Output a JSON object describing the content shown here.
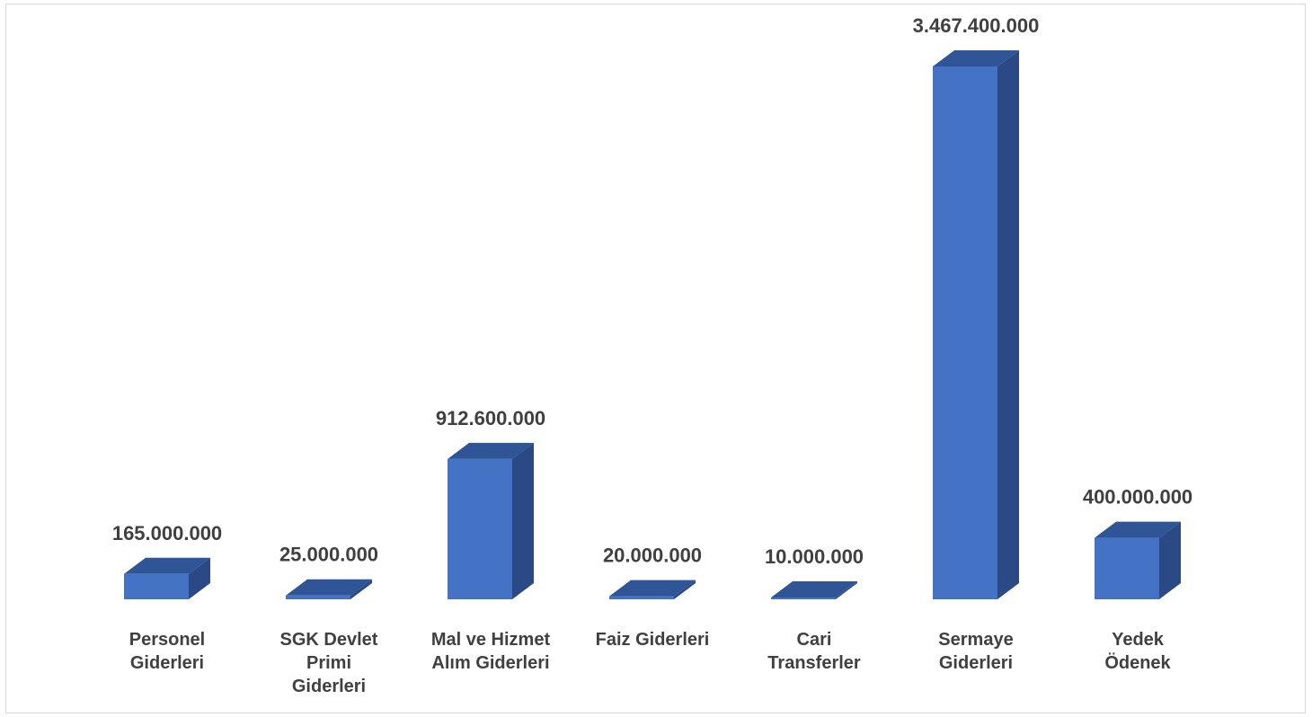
{
  "chart_data": {
    "type": "bar",
    "style": "3d-column",
    "categories": [
      [
        "Personel",
        "Giderleri"
      ],
      [
        "SGK Devlet",
        "Primi",
        "Giderleri"
      ],
      [
        "Mal ve Hizmet",
        "Alım Giderleri"
      ],
      [
        "Faiz Giderleri"
      ],
      [
        "Cari",
        "Transferler"
      ],
      [
        "Sermaye",
        "Giderleri"
      ],
      [
        "Yedek",
        "Ödenek"
      ]
    ],
    "values": [
      165000000,
      25000000,
      912600000,
      20000000,
      10000000,
      3467400000,
      400000000
    ],
    "value_labels": [
      "165.000.000",
      "25.000.000",
      "912.600.000",
      "20.000.000",
      "10.000.000",
      "3.467.400.000",
      "400.000.000"
    ],
    "ylim": [
      0,
      3467400000
    ],
    "grid": false,
    "legend": "none",
    "colors": {
      "front": "#4472c4",
      "top": "#2f5597",
      "side": "#2b4a85",
      "text": "#404040"
    }
  }
}
